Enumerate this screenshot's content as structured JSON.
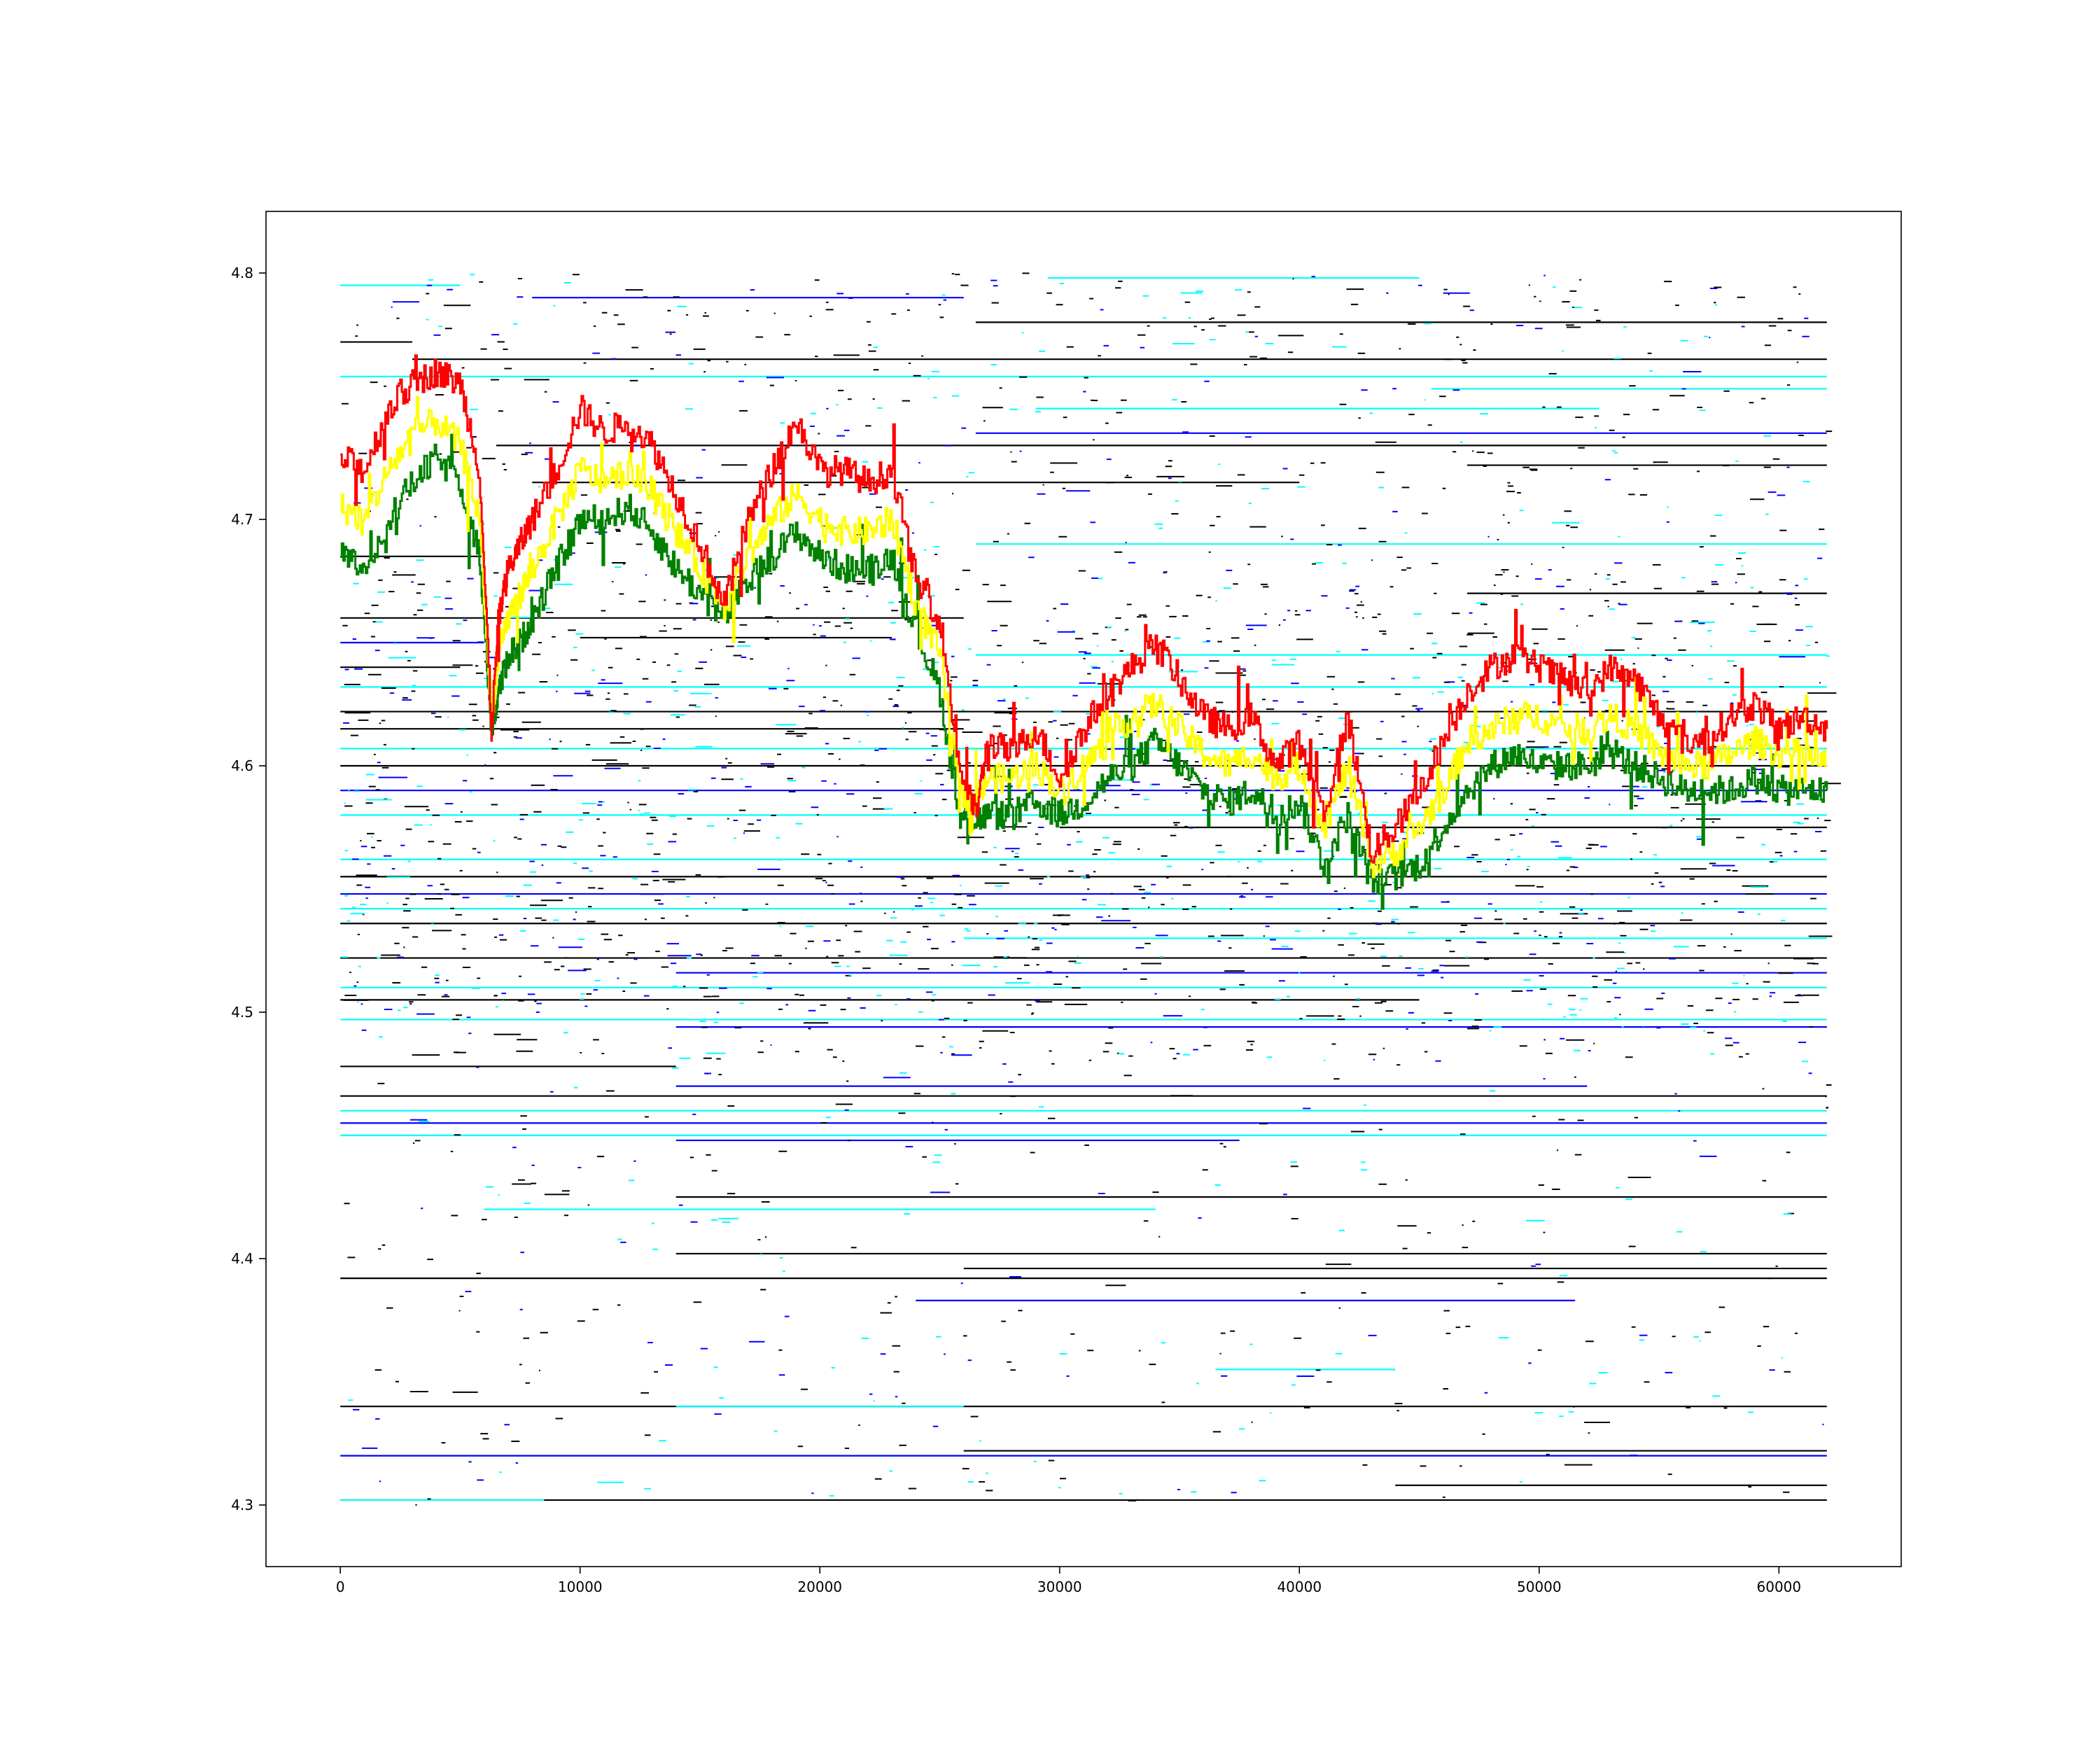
{
  "chart_data": {
    "type": "line",
    "title": "",
    "xlabel": "",
    "ylabel": "",
    "xlim": [
      -3100,
      65100
    ],
    "ylim": [
      4.275,
      4.825
    ],
    "x_ticks": [
      0,
      10000,
      20000,
      30000,
      40000,
      50000,
      60000
    ],
    "x_tick_labels": [
      "0",
      "10000",
      "20000",
      "30000",
      "40000",
      "50000",
      "60000"
    ],
    "y_ticks": [
      4.3,
      4.4,
      4.5,
      4.6,
      4.7,
      4.8
    ],
    "y_tick_labels": [
      "4.3",
      "4.4",
      "4.5",
      "4.6",
      "4.7",
      "4.8"
    ],
    "grid": false,
    "legend": "none",
    "colors": {
      "upper": "#ff0000",
      "middle": "#ffff00",
      "lower": "#008000",
      "level_line_a": "#000000",
      "level_line_b": "#00ffff",
      "level_line_c": "#0000ff"
    },
    "series": [
      {
        "key": "upper",
        "x": [
          0,
          1000,
          2000,
          3000,
          4000,
          5000,
          5800,
          6300,
          6600,
          7000,
          7500,
          8000,
          9000,
          10000,
          11000,
          12000,
          13000,
          14000,
          15000,
          16000,
          17000,
          18000,
          19000,
          20000,
          21000,
          22000,
          23000,
          24000,
          25000,
          25800,
          26500,
          27000,
          28000,
          29000,
          30000,
          31000,
          32000,
          33000,
          34000,
          35000,
          36000,
          37000,
          38000,
          39000,
          40000,
          41000,
          42000,
          43000,
          44000,
          45000,
          46000,
          47000,
          48000,
          49000,
          50000,
          51000,
          52000,
          53000,
          54000,
          55000,
          56000,
          57000,
          58000,
          59000,
          60000,
          61000,
          62000
        ],
        "y": [
          4.725,
          4.72,
          4.745,
          4.755,
          4.76,
          4.755,
          4.72,
          4.615,
          4.66,
          4.68,
          4.69,
          4.7,
          4.72,
          4.745,
          4.735,
          4.74,
          4.73,
          4.71,
          4.69,
          4.665,
          4.7,
          4.72,
          4.74,
          4.72,
          4.72,
          4.715,
          4.72,
          4.675,
          4.66,
          4.6,
          4.58,
          4.61,
          4.605,
          4.615,
          4.595,
          4.615,
          4.63,
          4.64,
          4.65,
          4.635,
          4.62,
          4.615,
          4.62,
          4.6,
          4.61,
          4.58,
          4.62,
          4.565,
          4.575,
          4.59,
          4.61,
          4.63,
          4.64,
          4.645,
          4.64,
          4.635,
          4.63,
          4.64,
          4.635,
          4.62,
          4.61,
          4.61,
          4.62,
          4.625,
          4.615,
          4.62,
          4.615
        ]
      },
      {
        "key": "middle",
        "x": [
          0,
          1000,
          2000,
          3000,
          4000,
          5000,
          5800,
          6300,
          6600,
          7000,
          7500,
          8000,
          9000,
          10000,
          11000,
          12000,
          13000,
          14000,
          15000,
          16000,
          17000,
          18000,
          19000,
          20000,
          21000,
          22000,
          23000,
          24000,
          25000,
          25800,
          26500,
          27000,
          28000,
          29000,
          30000,
          31000,
          32000,
          33000,
          34000,
          35000,
          36000,
          37000,
          38000,
          39000,
          40000,
          41000,
          42000,
          43000,
          44000,
          45000,
          46000,
          47000,
          48000,
          49000,
          50000,
          51000,
          52000,
          53000,
          54000,
          55000,
          56000,
          57000,
          58000,
          59000,
          60000,
          61000,
          62000
        ],
        "y": [
          4.705,
          4.7,
          4.72,
          4.735,
          4.74,
          4.73,
          4.7,
          4.62,
          4.645,
          4.66,
          4.67,
          4.68,
          4.7,
          4.72,
          4.715,
          4.72,
          4.71,
          4.695,
          4.68,
          4.665,
          4.685,
          4.7,
          4.71,
          4.7,
          4.695,
          4.695,
          4.7,
          4.665,
          4.645,
          4.59,
          4.585,
          4.595,
          4.595,
          4.6,
          4.59,
          4.6,
          4.61,
          4.62,
          4.625,
          4.615,
          4.605,
          4.6,
          4.605,
          4.595,
          4.6,
          4.575,
          4.6,
          4.56,
          4.565,
          4.575,
          4.59,
          4.61,
          4.615,
          4.62,
          4.62,
          4.615,
          4.615,
          4.62,
          4.615,
          4.605,
          4.6,
          4.6,
          4.605,
          4.61,
          4.605,
          4.605,
          4.6
        ]
      },
      {
        "key": "lower",
        "x": [
          0,
          1000,
          2000,
          3000,
          4000,
          5000,
          5800,
          6300,
          6600,
          7000,
          7500,
          8000,
          9000,
          10000,
          11000,
          12000,
          13000,
          14000,
          15000,
          16000,
          17000,
          18000,
          19000,
          20000,
          21000,
          22000,
          23000,
          24000,
          25000,
          25800,
          26500,
          27000,
          28000,
          29000,
          30000,
          31000,
          32000,
          33000,
          34000,
          35000,
          36000,
          37000,
          38000,
          39000,
          40000,
          41000,
          42000,
          43000,
          44000,
          45000,
          46000,
          47000,
          48000,
          49000,
          50000,
          51000,
          52000,
          53000,
          54000,
          55000,
          56000,
          57000,
          58000,
          59000,
          60000,
          61000,
          62000
        ],
        "y": [
          4.685,
          4.68,
          4.7,
          4.715,
          4.725,
          4.715,
          4.685,
          4.615,
          4.63,
          4.645,
          4.65,
          4.66,
          4.68,
          4.7,
          4.7,
          4.705,
          4.695,
          4.68,
          4.67,
          4.66,
          4.675,
          4.685,
          4.695,
          4.685,
          4.68,
          4.68,
          4.685,
          4.655,
          4.63,
          4.58,
          4.578,
          4.58,
          4.58,
          4.585,
          4.58,
          4.585,
          4.595,
          4.6,
          4.61,
          4.6,
          4.59,
          4.585,
          4.59,
          4.58,
          4.585,
          4.56,
          4.58,
          4.553,
          4.555,
          4.56,
          4.575,
          4.59,
          4.6,
          4.605,
          4.6,
          4.6,
          4.6,
          4.605,
          4.6,
          4.595,
          4.59,
          4.59,
          4.59,
          4.595,
          4.59,
          4.59,
          4.59
        ]
      }
    ],
    "level_lines": [
      {
        "y": 4.795,
        "x0": 0,
        "x1": 5000,
        "c": "b"
      },
      {
        "y": 4.79,
        "x0": 8000,
        "x1": 26000,
        "c": "c"
      },
      {
        "y": 4.798,
        "x0": 29500,
        "x1": 45000,
        "c": "b"
      },
      {
        "y": 4.78,
        "x0": 26500,
        "x1": 62000,
        "c": "a"
      },
      {
        "y": 4.772,
        "x0": 0,
        "x1": 3000,
        "c": "a"
      },
      {
        "y": 4.765,
        "x0": 3000,
        "x1": 62000,
        "c": "a"
      },
      {
        "y": 4.758,
        "x0": 0,
        "x1": 62000,
        "c": "b"
      },
      {
        "y": 4.753,
        "x0": 45500,
        "x1": 62000,
        "c": "b"
      },
      {
        "y": 4.745,
        "x0": 29000,
        "x1": 52500,
        "c": "b"
      },
      {
        "y": 4.735,
        "x0": 26500,
        "x1": 62000,
        "c": "c"
      },
      {
        "y": 4.73,
        "x0": 6500,
        "x1": 62000,
        "c": "a"
      },
      {
        "y": 4.722,
        "x0": 47000,
        "x1": 62000,
        "c": "a"
      },
      {
        "y": 4.715,
        "x0": 8000,
        "x1": 40000,
        "c": "a"
      },
      {
        "y": 4.69,
        "x0": 26500,
        "x1": 62000,
        "c": "b"
      },
      {
        "y": 4.685,
        "x0": 0,
        "x1": 6000,
        "c": "a"
      },
      {
        "y": 4.67,
        "x0": 47000,
        "x1": 62000,
        "c": "a"
      },
      {
        "y": 4.66,
        "x0": 0,
        "x1": 26000,
        "c": "a"
      },
      {
        "y": 4.65,
        "x0": 0,
        "x1": 6000,
        "c": "c"
      },
      {
        "y": 4.652,
        "x0": 10000,
        "x1": 23000,
        "c": "a"
      },
      {
        "y": 4.645,
        "x0": 26500,
        "x1": 62000,
        "c": "b"
      },
      {
        "y": 4.64,
        "x0": 0,
        "x1": 5000,
        "c": "a"
      },
      {
        "y": 4.632,
        "x0": 0,
        "x1": 62000,
        "c": "b"
      },
      {
        "y": 4.622,
        "x0": 0,
        "x1": 62000,
        "c": "a"
      },
      {
        "y": 4.615,
        "x0": 0,
        "x1": 26000,
        "c": "a"
      },
      {
        "y": 4.607,
        "x0": 0,
        "x1": 62000,
        "c": "b"
      },
      {
        "y": 4.6,
        "x0": 0,
        "x1": 62000,
        "c": "a"
      },
      {
        "y": 4.59,
        "x0": 0,
        "x1": 62000,
        "c": "c"
      },
      {
        "y": 4.58,
        "x0": 0,
        "x1": 62000,
        "c": "b"
      },
      {
        "y": 4.575,
        "x0": 30000,
        "x1": 62000,
        "c": "a"
      },
      {
        "y": 4.562,
        "x0": 0,
        "x1": 62000,
        "c": "b"
      },
      {
        "y": 4.555,
        "x0": 0,
        "x1": 62000,
        "c": "a"
      },
      {
        "y": 4.548,
        "x0": 0,
        "x1": 62000,
        "c": "c"
      },
      {
        "y": 4.542,
        "x0": 0,
        "x1": 62000,
        "c": "b"
      },
      {
        "y": 4.536,
        "x0": 0,
        "x1": 62000,
        "c": "a"
      },
      {
        "y": 4.53,
        "x0": 26000,
        "x1": 62000,
        "c": "b"
      },
      {
        "y": 4.522,
        "x0": 0,
        "x1": 62000,
        "c": "a"
      },
      {
        "y": 4.516,
        "x0": 14000,
        "x1": 62000,
        "c": "c"
      },
      {
        "y": 4.51,
        "x0": 0,
        "x1": 62000,
        "c": "b"
      },
      {
        "y": 4.505,
        "x0": 0,
        "x1": 45000,
        "c": "a"
      },
      {
        "y": 4.497,
        "x0": 0,
        "x1": 62000,
        "c": "b"
      },
      {
        "y": 4.494,
        "x0": 14000,
        "x1": 62000,
        "c": "c"
      },
      {
        "y": 4.478,
        "x0": 0,
        "x1": 14000,
        "c": "a"
      },
      {
        "y": 4.47,
        "x0": 14000,
        "x1": 52000,
        "c": "c"
      },
      {
        "y": 4.466,
        "x0": 0,
        "x1": 62000,
        "c": "a"
      },
      {
        "y": 4.46,
        "x0": 0,
        "x1": 62000,
        "c": "b"
      },
      {
        "y": 4.455,
        "x0": 0,
        "x1": 62000,
        "c": "c"
      },
      {
        "y": 4.448,
        "x0": 14000,
        "x1": 37500,
        "c": "c"
      },
      {
        "y": 4.45,
        "x0": 0,
        "x1": 62000,
        "c": "b"
      },
      {
        "y": 4.425,
        "x0": 14000,
        "x1": 62000,
        "c": "a"
      },
      {
        "y": 4.42,
        "x0": 6000,
        "x1": 34000,
        "c": "b"
      },
      {
        "y": 4.402,
        "x0": 14000,
        "x1": 62000,
        "c": "a"
      },
      {
        "y": 4.396,
        "x0": 26000,
        "x1": 62000,
        "c": "a"
      },
      {
        "y": 4.392,
        "x0": 0,
        "x1": 62000,
        "c": "a"
      },
      {
        "y": 4.383,
        "x0": 24000,
        "x1": 51500,
        "c": "c"
      },
      {
        "y": 4.355,
        "x0": 36500,
        "x1": 44000,
        "c": "b"
      },
      {
        "y": 4.34,
        "x0": 0,
        "x1": 62000,
        "c": "a"
      },
      {
        "y": 4.34,
        "x0": 14000,
        "x1": 26000,
        "c": "b"
      },
      {
        "y": 4.322,
        "x0": 26000,
        "x1": 62000,
        "c": "a"
      },
      {
        "y": 4.32,
        "x0": 0,
        "x1": 62000,
        "c": "c"
      },
      {
        "y": 4.308,
        "x0": 44000,
        "x1": 62000,
        "c": "a"
      },
      {
        "y": 4.302,
        "x0": 0,
        "x1": 62000,
        "c": "a"
      },
      {
        "y": 4.302,
        "x0": 0,
        "x1": 8500,
        "c": "b"
      }
    ]
  }
}
